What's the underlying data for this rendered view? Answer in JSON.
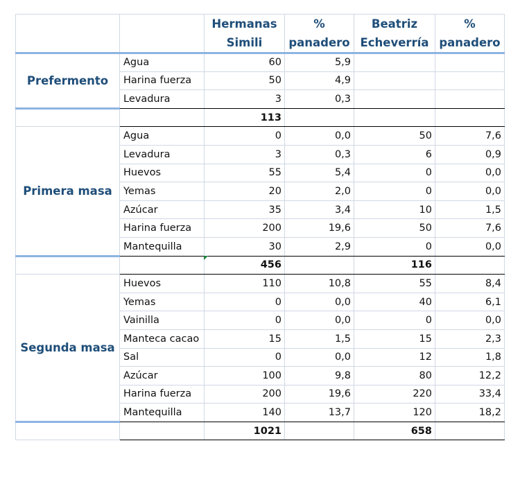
{
  "headers": {
    "col_section": "",
    "col_ingredient": "",
    "simili": [
      "Hermanas",
      "Simili"
    ],
    "pct1": [
      "%",
      "panadero"
    ],
    "beatriz": [
      "Beatriz",
      "Echeverría"
    ],
    "pct2": [
      "%",
      "panadero"
    ]
  },
  "groups": [
    {
      "name": "Prefermento",
      "rows": [
        {
          "ingredient": "Agua",
          "simili": "60",
          "pct1": "5,9",
          "beatriz": "",
          "pct2": ""
        },
        {
          "ingredient": "Harina fuerza",
          "simili": "50",
          "pct1": "4,9",
          "beatriz": "",
          "pct2": ""
        },
        {
          "ingredient": "Levadura",
          "simili": "3",
          "pct1": "0,3",
          "beatriz": "",
          "pct2": ""
        }
      ],
      "total": {
        "simili": "113",
        "beatriz": ""
      }
    },
    {
      "name": "Primera masa",
      "rows": [
        {
          "ingredient": "Agua",
          "simili": "0",
          "pct1": "0,0",
          "beatriz": "50",
          "pct2": "7,6"
        },
        {
          "ingredient": "Levadura",
          "simili": "3",
          "pct1": "0,3",
          "beatriz": "6",
          "pct2": "0,9"
        },
        {
          "ingredient": "Huevos",
          "simili": "55",
          "pct1": "5,4",
          "beatriz": "0",
          "pct2": "0,0"
        },
        {
          "ingredient": "Yemas",
          "simili": "20",
          "pct1": "2,0",
          "beatriz": "0",
          "pct2": "0,0"
        },
        {
          "ingredient": "Azúcar",
          "simili": "35",
          "pct1": "3,4",
          "beatriz": "10",
          "pct2": "1,5"
        },
        {
          "ingredient": "Harina fuerza",
          "simili": "200",
          "pct1": "19,6",
          "beatriz": "50",
          "pct2": "7,6"
        },
        {
          "ingredient": "Mantequilla",
          "simili": "30",
          "pct1": "2,9",
          "beatriz": "0",
          "pct2": "0,0"
        }
      ],
      "total": {
        "simili": "456",
        "beatriz": "116"
      }
    },
    {
      "name": "Segunda masa",
      "rows": [
        {
          "ingredient": "Huevos",
          "simili": "110",
          "pct1": "10,8",
          "beatriz": "55",
          "pct2": "8,4"
        },
        {
          "ingredient": "Yemas",
          "simili": "0",
          "pct1": "0,0",
          "beatriz": "40",
          "pct2": "6,1"
        },
        {
          "ingredient": "Vainilla",
          "simili": "0",
          "pct1": "0,0",
          "beatriz": "0",
          "pct2": "0,0"
        },
        {
          "ingredient": "Manteca cacao",
          "simili": "15",
          "pct1": "1,5",
          "beatriz": "15",
          "pct2": "2,3"
        },
        {
          "ingredient": "Sal",
          "simili": "0",
          "pct1": "0,0",
          "beatriz": "12",
          "pct2": "1,8"
        },
        {
          "ingredient": "Azúcar",
          "simili": "100",
          "pct1": "9,8",
          "beatriz": "80",
          "pct2": "12,2"
        },
        {
          "ingredient": "Harina fuerza",
          "simili": "200",
          "pct1": "19,6",
          "beatriz": "220",
          "pct2": "33,4"
        },
        {
          "ingredient": "Mantequilla",
          "simili": "140",
          "pct1": "13,7",
          "beatriz": "120",
          "pct2": "18,2"
        }
      ],
      "total": {
        "simili": "1021",
        "beatriz": "658"
      }
    }
  ],
  "colors": {
    "header_text": "#1f4e79",
    "section_rule": "#8db4e2",
    "gridline": "#d0d7e5",
    "error_marker": "#1a7f37"
  }
}
